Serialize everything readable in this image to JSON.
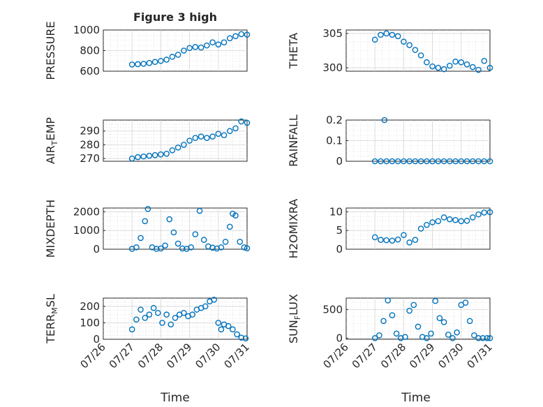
{
  "figure_title": "Figure 3 high",
  "marker_color": "#0072bd",
  "chart_data": [
    {
      "type": "scatter",
      "id": "pressure",
      "ylabel": "PRESSURE",
      "ylim": [
        600,
        1000
      ],
      "yticks": [
        600,
        800,
        1000
      ],
      "xlim": [
        0,
        5
      ],
      "x": [
        1.0,
        1.2,
        1.4,
        1.6,
        1.8,
        2.0,
        2.2,
        2.4,
        2.6,
        2.8,
        3.0,
        3.2,
        3.4,
        3.6,
        3.8,
        4.0,
        4.2,
        4.4,
        4.6,
        4.8,
        5.0
      ],
      "values": [
        665,
        668,
        672,
        680,
        690,
        700,
        712,
        740,
        760,
        800,
        825,
        835,
        830,
        850,
        880,
        860,
        880,
        920,
        940,
        960,
        955
      ]
    },
    {
      "type": "scatter",
      "id": "theta",
      "ylabel": "THETA",
      "ylim": [
        299.5,
        305.5
      ],
      "yticks": [
        300,
        305
      ],
      "xlim": [
        0,
        5
      ],
      "x": [
        1.0,
        1.2,
        1.4,
        1.6,
        1.8,
        2.0,
        2.2,
        2.4,
        2.6,
        2.8,
        3.0,
        3.2,
        3.4,
        3.6,
        3.8,
        4.0,
        4.2,
        4.4,
        4.6,
        4.8,
        5.0
      ],
      "values": [
        304.1,
        304.8,
        305.0,
        304.8,
        304.6,
        303.8,
        303.3,
        302.6,
        301.8,
        300.8,
        300.2,
        300.0,
        299.8,
        300.3,
        300.9,
        300.8,
        300.5,
        300.1,
        299.7,
        301.0,
        300.0
      ]
    },
    {
      "type": "scatter",
      "id": "air_temp",
      "ylabel": "AIR_TEMP",
      "ylim": [
        268,
        298
      ],
      "yticks": [
        270,
        280,
        290
      ],
      "xlim": [
        0,
        5
      ],
      "x": [
        1.0,
        1.2,
        1.4,
        1.6,
        1.8,
        2.0,
        2.2,
        2.4,
        2.6,
        2.8,
        3.0,
        3.2,
        3.4,
        3.6,
        3.8,
        4.0,
        4.2,
        4.4,
        4.6,
        4.8,
        5.0
      ],
      "values": [
        270,
        271,
        271.5,
        272,
        272.5,
        273,
        273.5,
        276,
        278,
        280,
        283,
        285,
        286,
        285,
        286,
        288,
        287,
        290,
        292,
        297,
        296
      ]
    },
    {
      "type": "scatter",
      "id": "rainfall",
      "ylabel": "RAINFALL",
      "ylim": [
        0,
        0.2
      ],
      "yticks": [
        0,
        0.1,
        0.2
      ],
      "xlim": [
        0,
        5
      ],
      "x": [
        1.0,
        1.2,
        1.4,
        1.6,
        1.8,
        2.0,
        2.2,
        2.4,
        2.6,
        2.8,
        3.0,
        3.2,
        3.4,
        3.6,
        3.8,
        4.0,
        4.2,
        4.4,
        4.6,
        4.8,
        5.0,
        1.33
      ],
      "values": [
        0,
        0,
        0,
        0,
        0,
        0,
        0,
        0,
        0,
        0,
        0,
        0,
        0,
        0,
        0,
        0,
        0,
        0,
        0,
        0,
        0,
        0.2
      ]
    },
    {
      "type": "scatter",
      "id": "mixdepth",
      "ylabel": "MIXDEPTH",
      "ylim": [
        0,
        2200
      ],
      "yticks": [
        0,
        1000,
        2000
      ],
      "xlim": [
        0,
        5
      ],
      "x": [
        1.0,
        1.15,
        1.3,
        1.45,
        1.55,
        1.7,
        1.85,
        2.0,
        2.15,
        2.3,
        2.45,
        2.6,
        2.75,
        2.9,
        3.05,
        3.2,
        3.35,
        3.5,
        3.65,
        3.8,
        3.95,
        4.1,
        4.25,
        4.4,
        4.5,
        4.6,
        4.75,
        4.9,
        5.0
      ],
      "values": [
        20,
        100,
        600,
        1500,
        2150,
        100,
        20,
        40,
        200,
        1600,
        900,
        300,
        40,
        20,
        100,
        800,
        2050,
        500,
        150,
        80,
        40,
        100,
        400,
        1200,
        1900,
        1800,
        400,
        100,
        50
      ]
    },
    {
      "type": "scatter",
      "id": "h2omixra",
      "ylabel": "H2OMIXRA",
      "ylim": [
        0,
        11
      ],
      "yticks": [
        0,
        5,
        10
      ],
      "xlim": [
        0,
        5
      ],
      "x": [
        1.0,
        1.2,
        1.4,
        1.6,
        1.8,
        2.0,
        2.2,
        2.4,
        2.6,
        2.8,
        3.0,
        3.2,
        3.4,
        3.6,
        3.8,
        4.0,
        4.2,
        4.4,
        4.6,
        4.8,
        5.0
      ],
      "values": [
        3.2,
        2.5,
        2.4,
        2.3,
        2.6,
        3.8,
        1.8,
        2.5,
        5.5,
        6.5,
        7.2,
        7.5,
        8.5,
        8.0,
        7.8,
        7.5,
        7.6,
        8.5,
        9.3,
        9.8,
        9.9
      ]
    },
    {
      "type": "scatter",
      "id": "terr_msl",
      "ylabel": "TERR_MSL",
      "ylim": [
        0,
        250
      ],
      "yticks": [
        0,
        100,
        200
      ],
      "xlim": [
        0,
        5
      ],
      "x": [
        1.0,
        1.15,
        1.3,
        1.45,
        1.6,
        1.75,
        1.9,
        2.05,
        2.2,
        2.35,
        2.5,
        2.65,
        2.8,
        2.95,
        3.1,
        3.25,
        3.4,
        3.55,
        3.7,
        3.85,
        4.0,
        4.1,
        4.2,
        4.35,
        4.5,
        4.65,
        4.8,
        4.95
      ],
      "values": [
        60,
        120,
        180,
        130,
        150,
        190,
        160,
        100,
        150,
        90,
        130,
        150,
        160,
        140,
        150,
        180,
        190,
        200,
        230,
        240,
        100,
        60,
        90,
        80,
        60,
        30,
        10,
        5
      ]
    },
    {
      "type": "scatter",
      "id": "sun_flux",
      "ylabel": "SUN_FLUX",
      "ylim": [
        -20,
        700
      ],
      "yticks": [
        0,
        500
      ],
      "xlim": [
        0,
        5
      ],
      "x": [
        1.0,
        1.15,
        1.3,
        1.45,
        1.6,
        1.75,
        1.9,
        2.05,
        2.2,
        2.35,
        2.5,
        2.65,
        2.8,
        2.95,
        3.1,
        3.25,
        3.4,
        3.55,
        3.7,
        3.85,
        4.0,
        4.15,
        4.3,
        4.45,
        4.6,
        4.75,
        4.9,
        5.0
      ],
      "values": [
        0,
        50,
        300,
        660,
        400,
        80,
        0,
        20,
        480,
        580,
        200,
        20,
        0,
        80,
        650,
        350,
        280,
        60,
        0,
        100,
        580,
        620,
        300,
        50,
        0,
        0,
        0,
        0
      ]
    }
  ],
  "x_tick_labels": [
    "07/26",
    "07/27",
    "07/28",
    "07/29",
    "07/30",
    "07/31"
  ],
  "xlabel": "Time"
}
